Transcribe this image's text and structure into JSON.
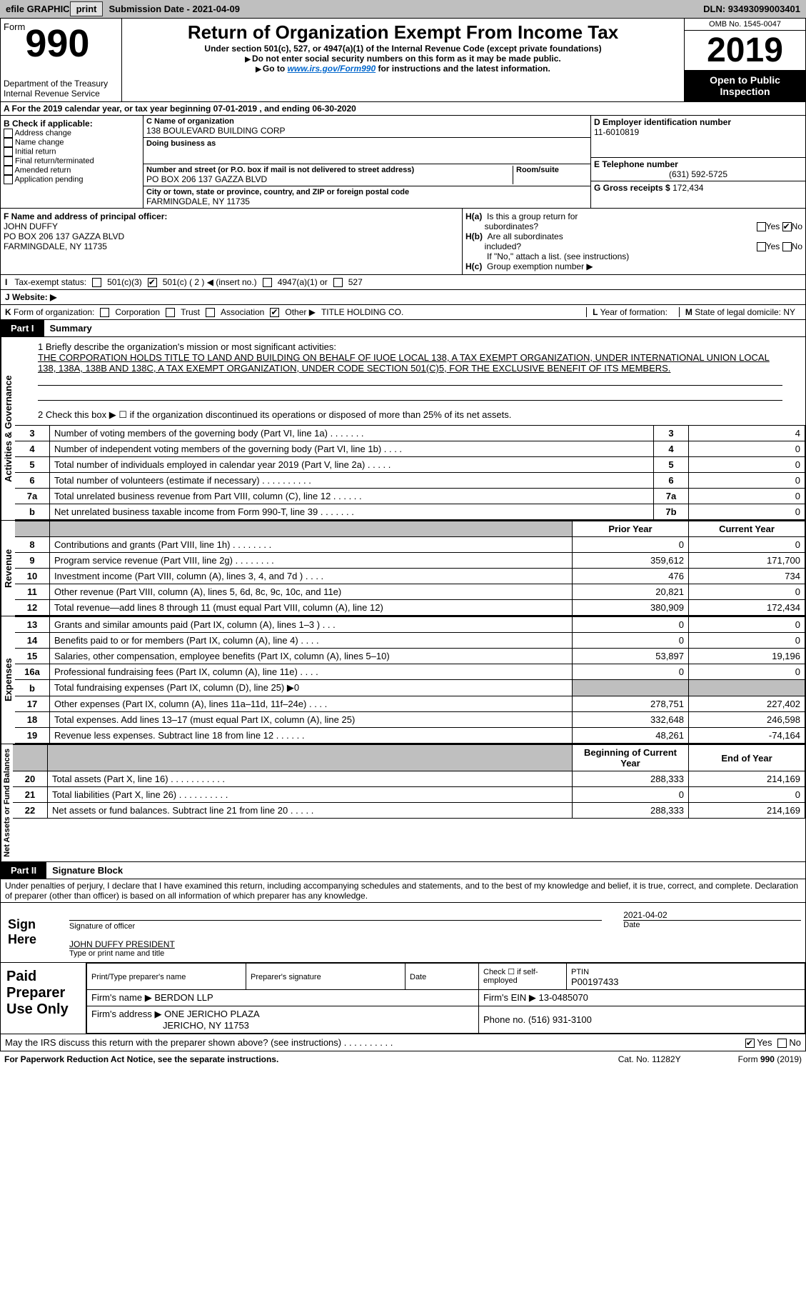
{
  "top_bar": {
    "efile_label": "efile GRAPHIC",
    "print_btn": "print",
    "submission_label": "Submission Date - 2021-04-09",
    "dln": "DLN: 93493099003401"
  },
  "header": {
    "form_label": "Form",
    "form_number": "990",
    "dept": "Department of the Treasury",
    "irs": "Internal Revenue Service",
    "title": "Return of Organization Exempt From Income Tax",
    "subtitle": "Under section 501(c), 527, or 4947(a)(1) of the Internal Revenue Code (except private foundations)",
    "note1": "Do not enter social security numbers on this form as it may be made public.",
    "note2_pre": "Go to ",
    "note2_link": "www.irs.gov/Form990",
    "note2_post": " for instructions and the latest information.",
    "omb": "OMB No. 1545-0047",
    "year": "2019",
    "open_to_public": "Open to Public Inspection"
  },
  "period": {
    "label_a": "A For the 2019 calendar year, or tax year beginning ",
    "begin": "07-01-2019",
    "label_mid": " , and ending ",
    "end": "06-30-2020"
  },
  "section_b": {
    "header": "B Check if applicable:",
    "items": [
      "Address change",
      "Name change",
      "Initial return",
      "Final return/terminated",
      "Amended return",
      "Application pending"
    ]
  },
  "section_c": {
    "name_label": "C Name of organization",
    "name": "138 BOULEVARD BUILDING CORP",
    "dba_label": "Doing business as",
    "dba": "",
    "address_label": "Number and street (or P.O. box if mail is not delivered to street address)",
    "room_label": "Room/suite",
    "address": "PO BOX 206 137 GAZZA BLVD",
    "city_label": "City or town, state or province, country, and ZIP or foreign postal code",
    "city": "FARMINGDALE, NY  11735"
  },
  "section_d": {
    "label": "D Employer identification number",
    "value": "11-6010819"
  },
  "section_e": {
    "label": "E Telephone number",
    "value": "(631) 592-5725"
  },
  "section_g": {
    "label": "G Gross receipts $",
    "value": "172,434"
  },
  "section_f": {
    "label": "F Name and address of principal officer:",
    "name": "JOHN DUFFY",
    "addr1": "PO BOX 206 137 GAZZA BLVD",
    "addr2": "FARMINGDALE, NY  11735"
  },
  "section_h": {
    "ha_label": "H(a)  Is this a group return for subordinates?",
    "ha_yes": "Yes",
    "ha_no": "No",
    "hb_label": "H(b)  Are all subordinates included?",
    "hb_yes": "Yes",
    "hb_no": "No",
    "hb_note": "If \"No,\" attach a list. (see instructions)",
    "hc_label": "H(c)  Group exemption number ▶",
    "hc_value": ""
  },
  "section_i": {
    "label": "I   Tax-exempt status:",
    "opt1": "501(c)(3)",
    "opt2": "501(c) ( 2 ) ◀ (insert no.)",
    "opt3": "4947(a)(1) or",
    "opt4": "527"
  },
  "section_j": {
    "label": "J   Website: ▶",
    "value": ""
  },
  "section_k": {
    "label": "K Form of organization:",
    "opts": [
      "Corporation",
      "Trust",
      "Association",
      "Other ▶"
    ],
    "other_value": "TITLE HOLDING CO."
  },
  "section_l": {
    "label": "L Year of formation:",
    "value": ""
  },
  "section_m": {
    "label": "M State of legal domicile:",
    "value": "NY"
  },
  "part1": {
    "label": "Part I",
    "title": "Summary",
    "q1_label": "1  Briefly describe the organization's mission or most significant activities:",
    "mission": "THE CORPORATION HOLDS TITLE TO LAND AND BUILDING ON BEHALF OF IUOE LOCAL 138, A TAX EXEMPT ORGANIZATION, UNDER INTERNATIONAL UNION LOCAL 138, 138A, 138B AND 138C, A TAX EXEMPT ORGANIZATION, UNDER CODE SECTION 501(C)5, FOR THE EXCLUSIVE BENEFIT OF ITS MEMBERS.",
    "q2": "2   Check this box ▶ ☐  if the organization discontinued its operations or disposed of more than 25% of its net assets.",
    "vert_ag": "Activities & Governance",
    "vert_rev": "Revenue",
    "vert_exp": "Expenses",
    "vert_na": "Net Assets or Fund Balances",
    "rows_ag": [
      {
        "n": "3",
        "t": "Number of voting members of the governing body (Part VI, line 1a)   .    .    .    .    .    .    .",
        "box": "3",
        "v": "4"
      },
      {
        "n": "4",
        "t": "Number of independent voting members of the governing body (Part VI, line 1b)   .    .    .    .",
        "box": "4",
        "v": "0"
      },
      {
        "n": "5",
        "t": "Total number of individuals employed in calendar year 2019 (Part V, line 2a)   .    .    .    .    .",
        "box": "5",
        "v": "0"
      },
      {
        "n": "6",
        "t": "Total number of volunteers (estimate if necessary)   .    .    .    .    .    .    .    .    .    .",
        "box": "6",
        "v": "0"
      },
      {
        "n": "7a",
        "t": "Total unrelated business revenue from Part VIII, column (C), line 12   .    .    .    .    .    .",
        "box": "7a",
        "v": "0"
      },
      {
        "n": " b",
        "t": "Net unrelated business taxable income from Form 990-T, line 39   .    .    .    .    .    .    .",
        "box": "7b",
        "v": "0"
      }
    ],
    "col_prior": "Prior Year",
    "col_current": "Current Year",
    "rows_rev": [
      {
        "n": "8",
        "t": "Contributions and grants (Part VIII, line 1h)   .    .    .    .    .    .    .    .",
        "p": "0",
        "c": "0"
      },
      {
        "n": "9",
        "t": "Program service revenue (Part VIII, line 2g)   .    .    .    .    .    .    .    .",
        "p": "359,612",
        "c": "171,700"
      },
      {
        "n": "10",
        "t": "Investment income (Part VIII, column (A), lines 3, 4, and 7d )   .    .    .    .",
        "p": "476",
        "c": "734"
      },
      {
        "n": "11",
        "t": "Other revenue (Part VIII, column (A), lines 5, 6d, 8c, 9c, 10c, and 11e)",
        "p": "20,821",
        "c": "0"
      },
      {
        "n": "12",
        "t": "Total revenue—add lines 8 through 11 (must equal Part VIII, column (A), line 12)",
        "p": "380,909",
        "c": "172,434"
      }
    ],
    "rows_exp": [
      {
        "n": "13",
        "t": "Grants and similar amounts paid (Part IX, column (A), lines 1–3 )  .    .    .",
        "p": "0",
        "c": "0"
      },
      {
        "n": "14",
        "t": "Benefits paid to or for members (Part IX, column (A), line 4)  .    .    .    .",
        "p": "0",
        "c": "0"
      },
      {
        "n": "15",
        "t": "Salaries, other compensation, employee benefits (Part IX, column (A), lines 5–10)",
        "p": "53,897",
        "c": "19,196"
      },
      {
        "n": "16a",
        "t": "Professional fundraising fees (Part IX, column (A), line 11e)  .    .    .    .",
        "p": "0",
        "c": "0"
      },
      {
        "n": " b",
        "t": "Total fundraising expenses (Part IX, column (D), line 25) ▶0",
        "p": "__GREY__",
        "c": "__GREY__"
      },
      {
        "n": "17",
        "t": "Other expenses (Part IX, column (A), lines 11a–11d, 11f–24e)  .    .    .    .",
        "p": "278,751",
        "c": "227,402"
      },
      {
        "n": "18",
        "t": "Total expenses. Add lines 13–17 (must equal Part IX, column (A), line 25)",
        "p": "332,648",
        "c": "246,598"
      },
      {
        "n": "19",
        "t": "Revenue less expenses. Subtract line 18 from line 12   .    .    .    .    .    .",
        "p": "48,261",
        "c": "-74,164"
      }
    ],
    "col_begin": "Beginning of Current Year",
    "col_end": "End of Year",
    "rows_na": [
      {
        "n": "20",
        "t": "Total assets (Part X, line 16)  .    .    .    .    .    .    .    .    .    .    .",
        "p": "288,333",
        "c": "214,169"
      },
      {
        "n": "21",
        "t": "Total liabilities (Part X, line 26)  .    .    .    .    .    .    .    .    .    .",
        "p": "0",
        "c": "0"
      },
      {
        "n": "22",
        "t": "Net assets or fund balances. Subtract line 21 from line 20  .    .    .    .    .",
        "p": "288,333",
        "c": "214,169"
      }
    ]
  },
  "part2": {
    "label": "Part II",
    "title": "Signature Block",
    "declaration": "Under penalties of perjury, I declare that I have examined this return, including accompanying schedules and statements, and to the best of my knowledge and belief, it is true, correct, and complete. Declaration of preparer (other than officer) is based on all information of which preparer has any knowledge.",
    "sign_here": "Sign Here",
    "sig_officer": "Signature of officer",
    "sig_date": "Date",
    "sig_date_val": "2021-04-02",
    "officer_name": "JOHN DUFFY PRESIDENT",
    "type_name": "Type or print name and title",
    "paid_prep": "Paid Preparer Use Only",
    "prep_name_label": "Print/Type preparer's name",
    "prep_name": "",
    "prep_sig_label": "Preparer's signature",
    "prep_date_label": "Date",
    "prep_check_label": "Check ☐  if self-employed",
    "ptin_label": "PTIN",
    "ptin": "P00197433",
    "firm_name_label": "Firm's name    ▶",
    "firm_name": "BERDON LLP",
    "firm_ein_label": "Firm's EIN ▶",
    "firm_ein": "13-0485070",
    "firm_addr_label": "Firm's address ▶",
    "firm_addr1": "ONE JERICHO PLAZA",
    "firm_addr2": "JERICHO, NY  11753",
    "phone_label": "Phone no.",
    "phone": "(516) 931-3100",
    "discuss": "May the IRS discuss this return with the preparer shown above? (see instructions)   .    .    .    .    .    .    .    .    .    .",
    "discuss_yes": "Yes",
    "discuss_no": "No"
  },
  "footer": {
    "left": "For Paperwork Reduction Act Notice, see the separate instructions.",
    "mid": "Cat. No. 11282Y",
    "right": "Form 990 (2019)"
  },
  "colors": {
    "top_bar_bg": "#bfbfbf",
    "black": "#000000",
    "link": "#0066cc"
  }
}
